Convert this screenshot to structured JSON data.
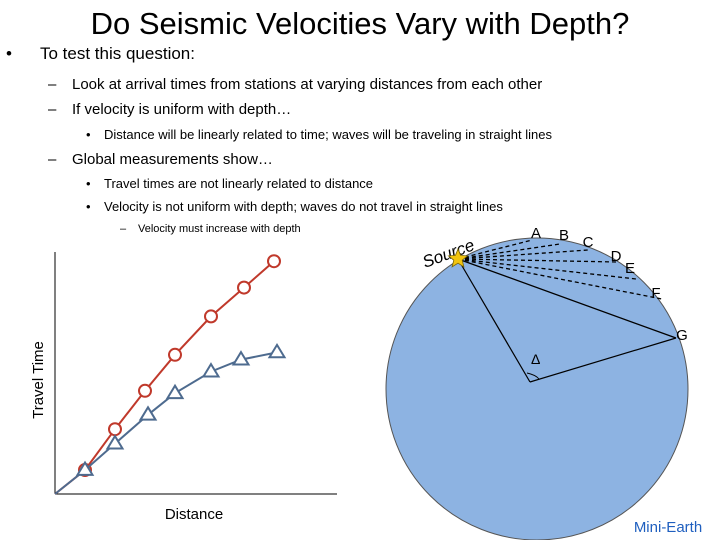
{
  "title": "Do Seismic Velocities Vary with Depth?",
  "bullets": {
    "b1": "To test this question:",
    "b1_1": "Look at arrival times from stations at varying distances from each other",
    "b1_2": "If velocity is uniform with depth…",
    "b1_2_1": "Distance will be linearly related to time; waves will be traveling in straight lines",
    "b1_3": "Global measurements show…",
    "b1_3_1": "Travel times are not linearly related to distance",
    "b1_3_2": "Velocity is not uniform with depth; waves do not travel in straight lines",
    "b1_3_2_1": "Velocity must increase with depth"
  },
  "markers": {
    "bullet": "•",
    "dash": "–"
  },
  "chart_data": {
    "type": "line",
    "xlabel": "Distance",
    "ylabel": "Travel Time",
    "series": [
      {
        "marker": "circle",
        "color": "#c0392b",
        "points": [
          [
            0.1,
            0.1
          ],
          [
            0.2,
            0.27
          ],
          [
            0.3,
            0.43
          ],
          [
            0.4,
            0.58
          ],
          [
            0.52,
            0.74
          ],
          [
            0.63,
            0.86
          ],
          [
            0.73,
            0.97
          ]
        ]
      },
      {
        "marker": "triangle",
        "color": "#4e6b8f",
        "points": [
          [
            0.1,
            0.1
          ],
          [
            0.2,
            0.21
          ],
          [
            0.31,
            0.33
          ],
          [
            0.4,
            0.42
          ],
          [
            0.52,
            0.51
          ],
          [
            0.62,
            0.56
          ],
          [
            0.74,
            0.59
          ]
        ]
      }
    ]
  },
  "earth": {
    "source_label": "Source",
    "station_labels": [
      "A",
      "B",
      "C",
      "D",
      "E",
      "F",
      "G"
    ],
    "angle_label": "Δ",
    "caption": "Mini-Earth",
    "fill_color": "#8db3e2",
    "caption_color": "#1f5fbf"
  }
}
